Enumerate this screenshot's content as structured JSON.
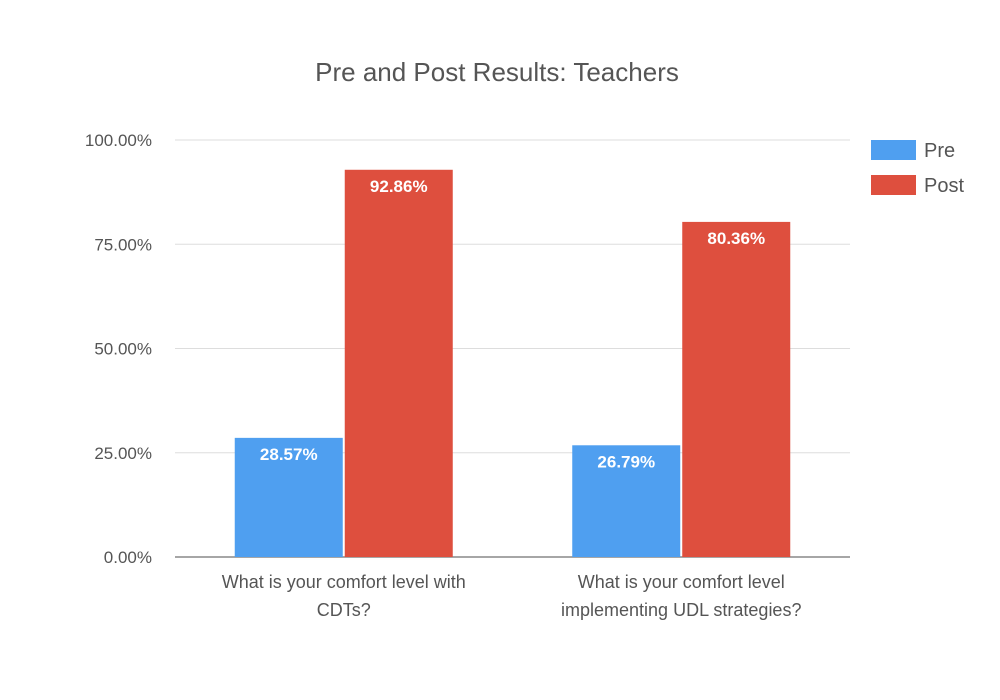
{
  "chart_data": {
    "type": "bar",
    "title": "Pre and Post Results: Teachers",
    "categories": [
      [
        "What is your comfort level with",
        "CDTs?"
      ],
      [
        "What is your comfort level",
        "implementing UDL strategies?"
      ]
    ],
    "series": [
      {
        "name": "Pre",
        "values": [
          28.57,
          26.79
        ],
        "labels": [
          "28.57%",
          "26.79%"
        ],
        "color": "#4f9ff0"
      },
      {
        "name": "Post",
        "values": [
          92.86,
          80.36
        ],
        "labels": [
          "92.86%",
          "80.36%"
        ],
        "color": "#de4f3e"
      }
    ],
    "ylim": [
      0,
      100
    ],
    "yticks": [
      0,
      25,
      50,
      75,
      100
    ],
    "ytick_labels": [
      "0.00%",
      "25.00%",
      "50.00%",
      "75.00%",
      "100.00%"
    ],
    "xlabel": "",
    "ylabel": "",
    "grid": true,
    "legend_position": "right",
    "colors": {
      "gridline": "#dddddd",
      "axis": "#888888",
      "text": "#555555",
      "data_label": "#ffffff"
    }
  }
}
